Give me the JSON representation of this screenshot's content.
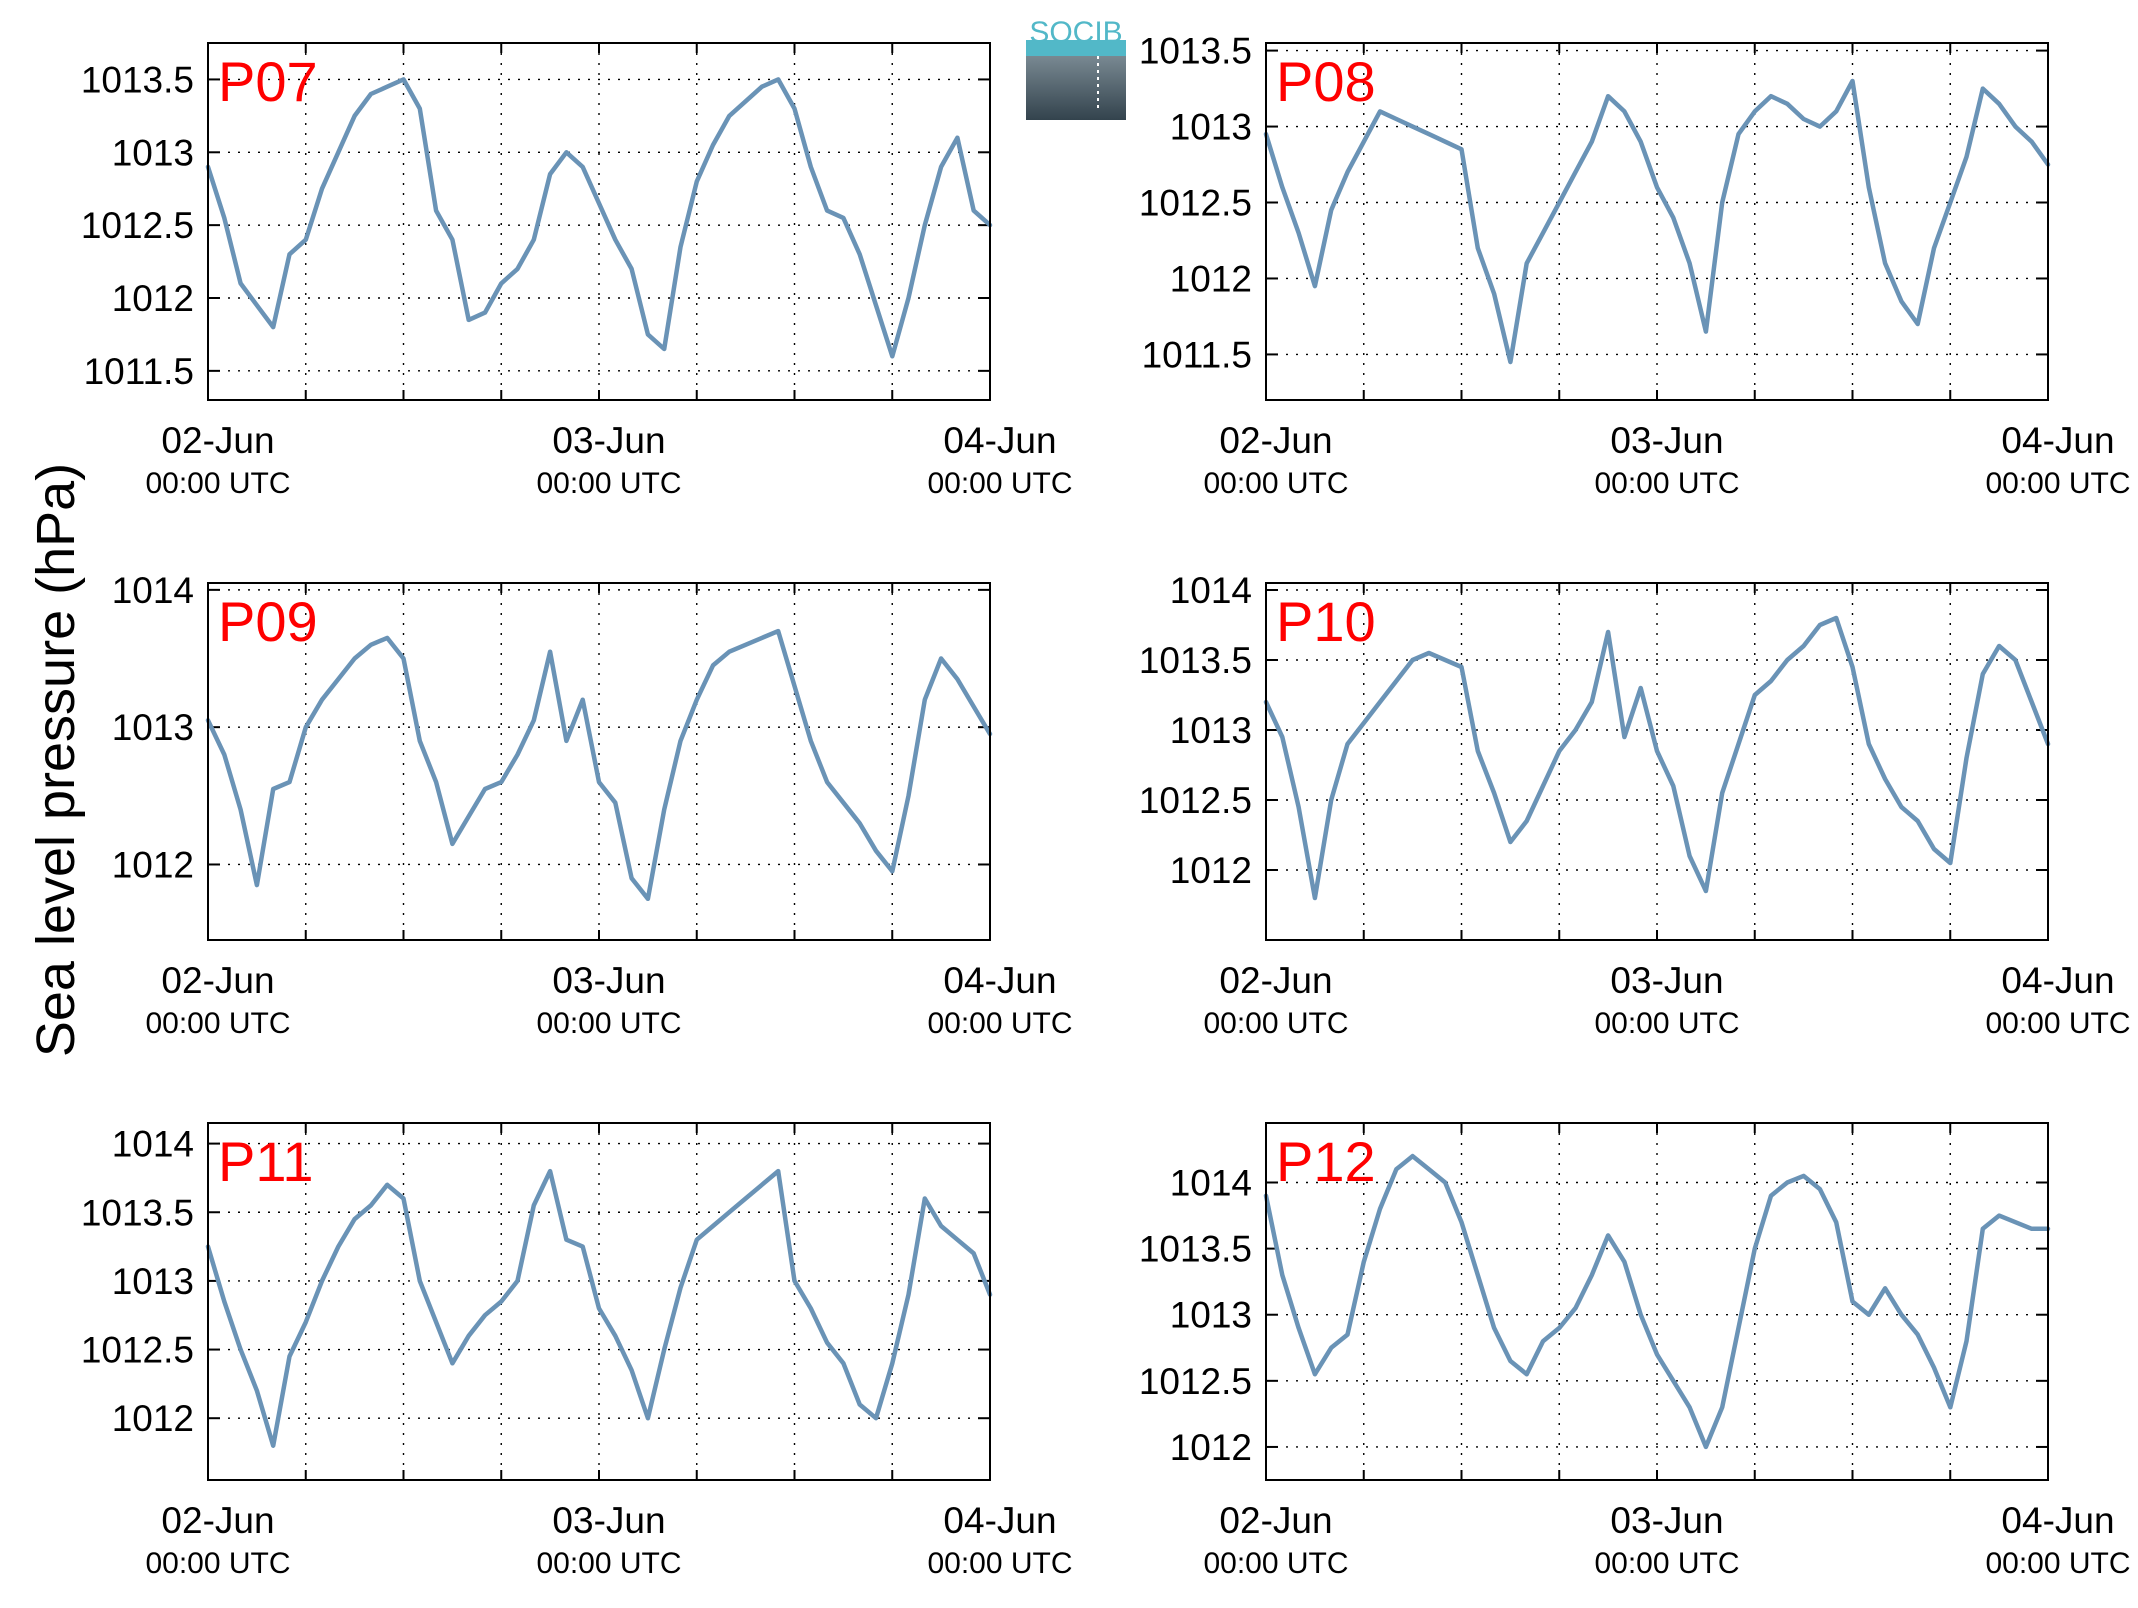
{
  "figure": {
    "ylabel": "Sea level pressure (hPa)",
    "logo_text": "SOCIB",
    "line_color": "#6a93b6",
    "label_color": "#ff0000",
    "xticks": [
      {
        "x": 0,
        "date": "02-Jun",
        "time": "00:00 UTC"
      },
      {
        "x": 24,
        "date": "03-Jun",
        "time": "00:00 UTC"
      },
      {
        "x": 48,
        "date": "04-Jun",
        "time": "00:00 UTC"
      }
    ],
    "minor_x_grid": [
      6,
      12,
      18,
      24,
      30,
      36,
      42
    ]
  },
  "chart_data": [
    {
      "type": "line",
      "label": "P07",
      "x_unit": "hours since 02-Jun 00:00 UTC",
      "xlim": [
        0,
        48
      ],
      "ylim": [
        1011.3,
        1013.75
      ],
      "yticks": [
        1011.5,
        1012,
        1012.5,
        1013,
        1013.5
      ],
      "yticklabels": [
        "1011.5",
        "1012",
        "1012.5",
        "1013",
        "1013.5"
      ],
      "x": [
        0,
        1,
        2,
        3,
        4,
        5,
        6,
        7,
        8,
        9,
        10,
        11,
        12,
        13,
        14,
        15,
        16,
        17,
        18,
        19,
        20,
        21,
        22,
        23,
        24,
        25,
        26,
        27,
        28,
        29,
        30,
        31,
        32,
        33,
        34,
        35,
        36,
        37,
        38,
        39,
        40,
        41,
        42,
        43,
        44,
        45,
        46,
        47,
        48
      ],
      "y": [
        1012.9,
        1012.55,
        1012.1,
        1011.95,
        1011.8,
        1012.3,
        1012.4,
        1012.75,
        1013.0,
        1013.25,
        1013.4,
        1013.45,
        1013.5,
        1013.3,
        1012.6,
        1012.4,
        1011.85,
        1011.9,
        1012.1,
        1012.2,
        1012.4,
        1012.85,
        1013.0,
        1012.9,
        1012.65,
        1012.4,
        1012.2,
        1011.75,
        1011.65,
        1012.35,
        1012.8,
        1013.05,
        1013.25,
        1013.35,
        1013.45,
        1013.5,
        1013.3,
        1012.9,
        1012.6,
        1012.55,
        1012.3,
        1011.95,
        1011.6,
        1012.0,
        1012.5,
        1012.9,
        1013.1,
        1012.6,
        1012.5
      ]
    },
    {
      "type": "line",
      "label": "P08",
      "x_unit": "hours since 02-Jun 00:00 UTC",
      "xlim": [
        0,
        48
      ],
      "ylim": [
        1011.2,
        1013.55
      ],
      "yticks": [
        1011.5,
        1012,
        1012.5,
        1013,
        1013.5
      ],
      "yticklabels": [
        "1011.5",
        "1012",
        "1012.5",
        "1013",
        "1013.5"
      ],
      "x": [
        0,
        1,
        2,
        3,
        4,
        5,
        6,
        7,
        8,
        9,
        10,
        11,
        12,
        13,
        14,
        15,
        16,
        17,
        18,
        19,
        20,
        21,
        22,
        23,
        24,
        25,
        26,
        27,
        28,
        29,
        30,
        31,
        32,
        33,
        34,
        35,
        36,
        37,
        38,
        39,
        40,
        41,
        42,
        43,
        44,
        45,
        46,
        47,
        48
      ],
      "y": [
        1012.95,
        1012.6,
        1012.3,
        1011.95,
        1012.45,
        1012.7,
        1012.9,
        1013.1,
        1013.05,
        1013.0,
        1012.95,
        1012.9,
        1012.85,
        1012.2,
        1011.9,
        1011.45,
        1012.1,
        1012.3,
        1012.5,
        1012.7,
        1012.9,
        1013.2,
        1013.1,
        1012.9,
        1012.6,
        1012.4,
        1012.1,
        1011.65,
        1012.5,
        1012.95,
        1013.1,
        1013.2,
        1013.15,
        1013.05,
        1013.0,
        1013.1,
        1013.3,
        1012.6,
        1012.1,
        1011.85,
        1011.7,
        1012.2,
        1012.5,
        1012.8,
        1013.25,
        1013.15,
        1013.0,
        1012.9,
        1012.75
      ]
    },
    {
      "type": "line",
      "label": "P09",
      "x_unit": "hours since 02-Jun 00:00 UTC",
      "xlim": [
        0,
        48
      ],
      "ylim": [
        1011.45,
        1014.05
      ],
      "yticks": [
        1012,
        1013,
        1014
      ],
      "yticklabels": [
        "1012",
        "1013",
        "1014"
      ],
      "x": [
        0,
        1,
        2,
        3,
        4,
        5,
        6,
        7,
        8,
        9,
        10,
        11,
        12,
        13,
        14,
        15,
        16,
        17,
        18,
        19,
        20,
        21,
        22,
        23,
        24,
        25,
        26,
        27,
        28,
        29,
        30,
        31,
        32,
        33,
        34,
        35,
        36,
        37,
        38,
        39,
        40,
        41,
        42,
        43,
        44,
        45,
        46,
        47,
        48
      ],
      "y": [
        1013.05,
        1012.8,
        1012.4,
        1011.85,
        1012.55,
        1012.6,
        1013.0,
        1013.2,
        1013.35,
        1013.5,
        1013.6,
        1013.65,
        1013.5,
        1012.9,
        1012.6,
        1012.15,
        1012.35,
        1012.55,
        1012.6,
        1012.8,
        1013.05,
        1013.55,
        1012.9,
        1013.2,
        1012.6,
        1012.45,
        1011.9,
        1011.75,
        1012.4,
        1012.9,
        1013.2,
        1013.45,
        1013.55,
        1013.6,
        1013.65,
        1013.7,
        1013.3,
        1012.9,
        1012.6,
        1012.45,
        1012.3,
        1012.1,
        1011.95,
        1012.5,
        1013.2,
        1013.5,
        1013.35,
        1013.15,
        1012.95
      ]
    },
    {
      "type": "line",
      "label": "P10",
      "x_unit": "hours since 02-Jun 00:00 UTC",
      "xlim": [
        0,
        48
      ],
      "ylim": [
        1011.5,
        1014.05
      ],
      "yticks": [
        1012,
        1012.5,
        1013,
        1013.5,
        1014
      ],
      "yticklabels": [
        "1012",
        "1012.5",
        "1013",
        "1013.5",
        "1014"
      ],
      "x": [
        0,
        1,
        2,
        3,
        4,
        5,
        6,
        7,
        8,
        9,
        10,
        11,
        12,
        13,
        14,
        15,
        16,
        17,
        18,
        19,
        20,
        21,
        22,
        23,
        24,
        25,
        26,
        27,
        28,
        29,
        30,
        31,
        32,
        33,
        34,
        35,
        36,
        37,
        38,
        39,
        40,
        41,
        42,
        43,
        44,
        45,
        46,
        47,
        48
      ],
      "y": [
        1013.2,
        1012.95,
        1012.45,
        1011.8,
        1012.5,
        1012.9,
        1013.05,
        1013.2,
        1013.35,
        1013.5,
        1013.55,
        1013.5,
        1013.45,
        1012.85,
        1012.55,
        1012.2,
        1012.35,
        1012.6,
        1012.85,
        1013.0,
        1013.2,
        1013.7,
        1012.95,
        1013.3,
        1012.85,
        1012.6,
        1012.1,
        1011.85,
        1012.55,
        1012.9,
        1013.25,
        1013.35,
        1013.5,
        1013.6,
        1013.75,
        1013.8,
        1013.45,
        1012.9,
        1012.65,
        1012.45,
        1012.35,
        1012.15,
        1012.05,
        1012.8,
        1013.4,
        1013.6,
        1013.5,
        1013.2,
        1012.9
      ]
    },
    {
      "type": "line",
      "label": "P11",
      "x_unit": "hours since 02-Jun 00:00 UTC",
      "xlim": [
        0,
        48
      ],
      "ylim": [
        1011.55,
        1014.15
      ],
      "yticks": [
        1012,
        1012.5,
        1013,
        1013.5,
        1014
      ],
      "yticklabels": [
        "1012",
        "1012.5",
        "1013",
        "1013.5",
        "1014"
      ],
      "x": [
        0,
        1,
        2,
        3,
        4,
        5,
        6,
        7,
        8,
        9,
        10,
        11,
        12,
        13,
        14,
        15,
        16,
        17,
        18,
        19,
        20,
        21,
        22,
        23,
        24,
        25,
        26,
        27,
        28,
        29,
        30,
        31,
        32,
        33,
        34,
        35,
        36,
        37,
        38,
        39,
        40,
        41,
        42,
        43,
        44,
        45,
        46,
        47,
        48
      ],
      "y": [
        1013.25,
        1012.85,
        1012.5,
        1012.2,
        1011.8,
        1012.45,
        1012.7,
        1013.0,
        1013.25,
        1013.45,
        1013.55,
        1013.7,
        1013.6,
        1013.0,
        1012.7,
        1012.4,
        1012.6,
        1012.75,
        1012.85,
        1013.0,
        1013.55,
        1013.8,
        1013.3,
        1013.25,
        1012.8,
        1012.6,
        1012.35,
        1012.0,
        1012.5,
        1012.95,
        1013.3,
        1013.4,
        1013.5,
        1013.6,
        1013.7,
        1013.8,
        1013.0,
        1012.8,
        1012.55,
        1012.4,
        1012.1,
        1012.0,
        1012.4,
        1012.9,
        1013.6,
        1013.4,
        1013.3,
        1013.2,
        1012.9
      ]
    },
    {
      "type": "line",
      "label": "P12",
      "x_unit": "hours since 02-Jun 00:00 UTC",
      "xlim": [
        0,
        48
      ],
      "ylim": [
        1011.75,
        1014.45
      ],
      "yticks": [
        1012,
        1012.5,
        1013,
        1013.5,
        1014
      ],
      "yticklabels": [
        "1012",
        "1012.5",
        "1013",
        "1013.5",
        "1014"
      ],
      "x": [
        0,
        1,
        2,
        3,
        4,
        5,
        6,
        7,
        8,
        9,
        10,
        11,
        12,
        13,
        14,
        15,
        16,
        17,
        18,
        19,
        20,
        21,
        22,
        23,
        24,
        25,
        26,
        27,
        28,
        29,
        30,
        31,
        32,
        33,
        34,
        35,
        36,
        37,
        38,
        39,
        40,
        41,
        42,
        43,
        44,
        45,
        46,
        47,
        48
      ],
      "y": [
        1013.9,
        1013.3,
        1012.9,
        1012.55,
        1012.75,
        1012.85,
        1013.4,
        1013.8,
        1014.1,
        1014.2,
        1014.1,
        1014.0,
        1013.7,
        1013.3,
        1012.9,
        1012.65,
        1012.55,
        1012.8,
        1012.9,
        1013.05,
        1013.3,
        1013.6,
        1013.4,
        1013.0,
        1012.7,
        1012.5,
        1012.3,
        1012.0,
        1012.3,
        1012.9,
        1013.5,
        1013.9,
        1014.0,
        1014.05,
        1013.95,
        1013.7,
        1013.1,
        1013.0,
        1013.2,
        1013.0,
        1012.85,
        1012.6,
        1012.3,
        1012.8,
        1013.65,
        1013.75,
        1013.7,
        1013.65,
        1013.65
      ]
    }
  ]
}
